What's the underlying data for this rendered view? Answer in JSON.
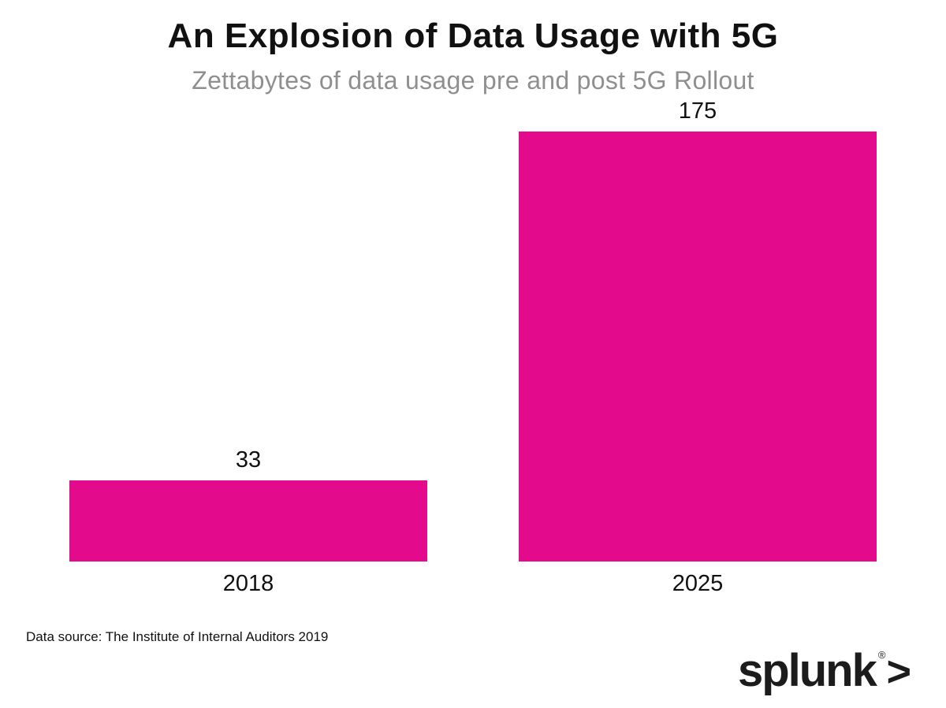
{
  "chart_data": {
    "type": "bar",
    "title": "An Explosion of Data Usage with 5G",
    "subtitle": "Zettabytes of data usage pre and post 5G Rollout",
    "categories": [
      "2018",
      "2025"
    ],
    "values": [
      33,
      175
    ],
    "value_labels": [
      "33",
      "175"
    ],
    "ylim": [
      0,
      175
    ],
    "bar_color": "#e40a8c",
    "grid": false,
    "legend": false,
    "orientation": "vertical"
  },
  "footer": {
    "source": "Data source: The Institute of Internal Auditors 2019",
    "logo_text": "splunk",
    "logo_registered_mark": "®",
    "logo_arrow": ">"
  }
}
